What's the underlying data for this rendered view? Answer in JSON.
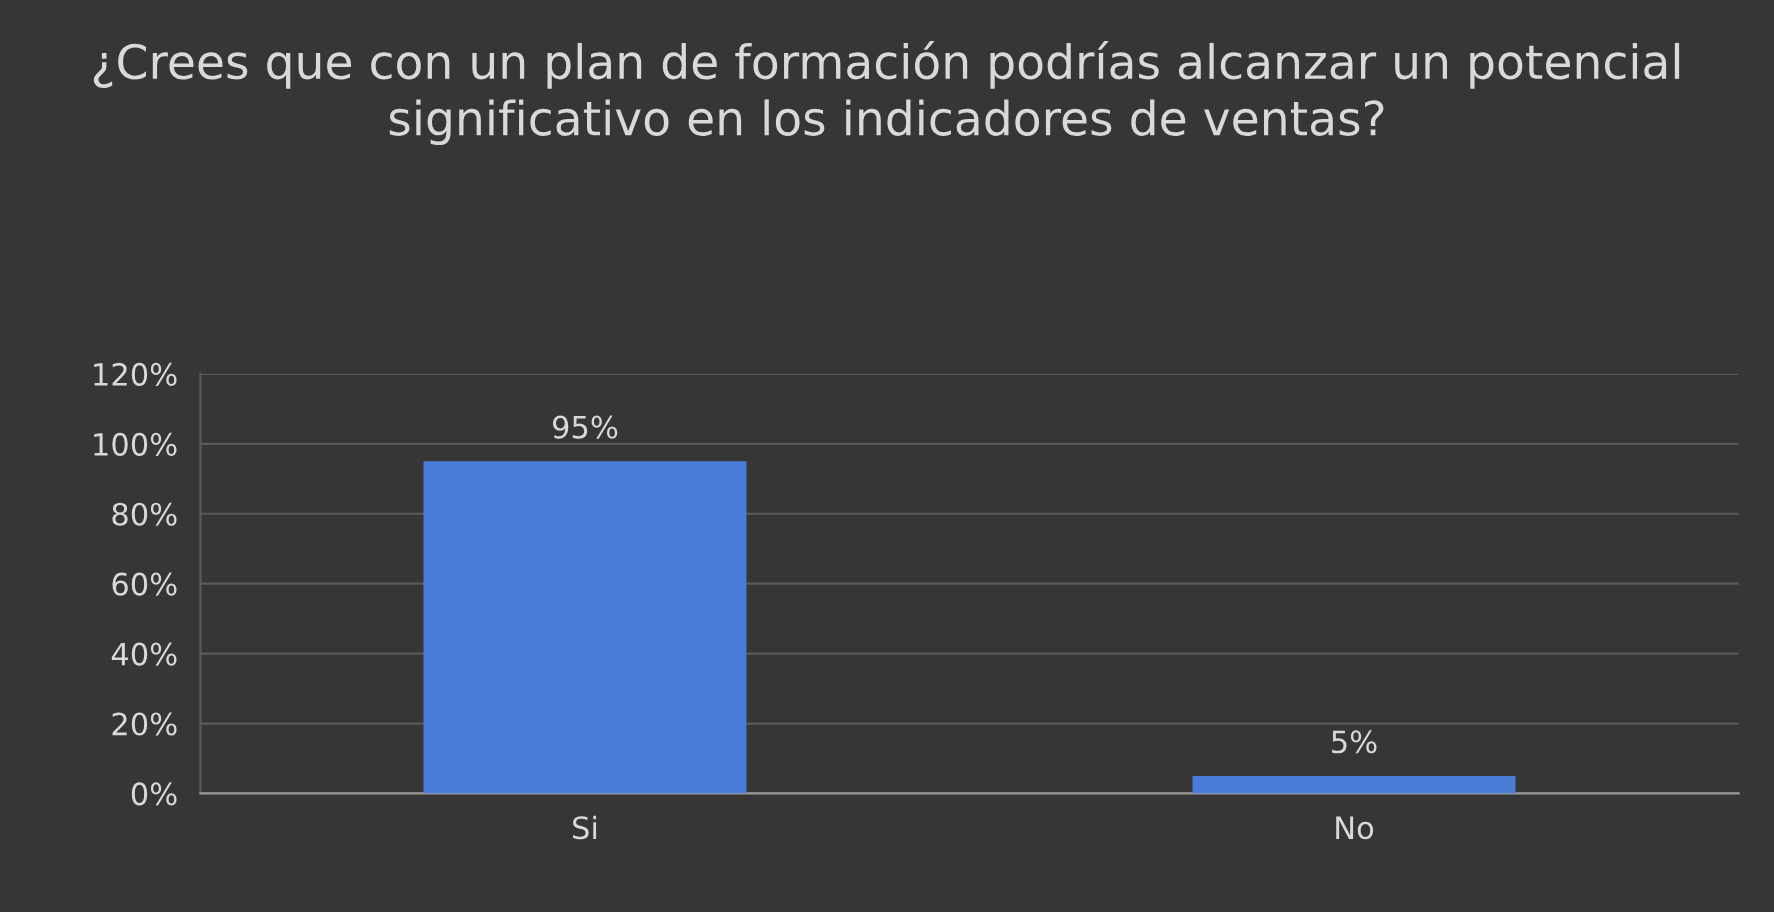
{
  "chart_data": {
    "type": "bar",
    "title": "¿Crees que con un plan de formación podrías alcanzar un potencial significativo en los indicadores de ventas?",
    "categories": [
      "Si",
      "No"
    ],
    "values": [
      95,
      5
    ],
    "value_labels": [
      "95%",
      "5%"
    ],
    "color": "#4a7bd6",
    "ylim": [
      0,
      120
    ],
    "yticks": [
      {
        "value": 0,
        "label": "0%"
      },
      {
        "value": 20,
        "label": "20%"
      },
      {
        "value": 40,
        "label": "40%"
      },
      {
        "value": 60,
        "label": "60%"
      },
      {
        "value": 80,
        "label": "80%"
      },
      {
        "value": 100,
        "label": "100%"
      },
      {
        "value": 120,
        "label": "120%"
      }
    ],
    "grid": "y",
    "legend": false
  }
}
